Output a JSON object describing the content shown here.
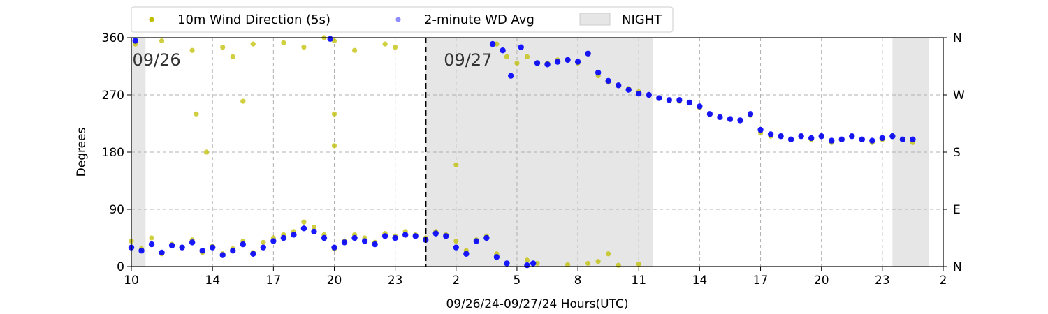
{
  "chart_data": {
    "type": "scatter",
    "x_hour_ticks": [
      "10",
      "14",
      "17",
      "20",
      "23",
      "2",
      "5",
      "8",
      "11",
      "14",
      "17",
      "20",
      "23",
      "2"
    ],
    "xlabel": "09/26/24-09/27/24  Hours(UTC)",
    "ylabel": "Degrees",
    "ylim": [
      0,
      360
    ],
    "y_ticks": [
      "0",
      "90",
      "180",
      "270",
      "360"
    ],
    "y2_ticks": [
      "N",
      "E",
      "S",
      "W",
      "N"
    ],
    "grid": true,
    "legend_position": "top",
    "date_markers": [
      {
        "label": "09/26"
      },
      {
        "label": "09/27"
      }
    ],
    "night_bands_hours": [
      [
        10,
        10.7
      ],
      [
        24.5,
        35.7
      ],
      [
        47.5,
        49.3
      ]
    ],
    "midnight_marker_hour": 24.5,
    "series": [
      {
        "name": "10m Wind Direction (5s)",
        "color": "#bfbf00",
        "marker": "scatter-dot",
        "points": [
          [
            10,
            40
          ],
          [
            10.5,
            28
          ],
          [
            11,
            45
          ],
          [
            11.5,
            20
          ],
          [
            12,
            35
          ],
          [
            12.5,
            30
          ],
          [
            13,
            42
          ],
          [
            13.5,
            22
          ],
          [
            14,
            32
          ],
          [
            14.5,
            20
          ],
          [
            15,
            28
          ],
          [
            15.5,
            40
          ],
          [
            16,
            22
          ],
          [
            16.5,
            38
          ],
          [
            17,
            45
          ],
          [
            17.5,
            50
          ],
          [
            18,
            55
          ],
          [
            18.5,
            70
          ],
          [
            19,
            62
          ],
          [
            19.5,
            50
          ],
          [
            20,
            28
          ],
          [
            20.5,
            40
          ],
          [
            21,
            50
          ],
          [
            21.5,
            45
          ],
          [
            22,
            38
          ],
          [
            22.5,
            52
          ],
          [
            23,
            48
          ],
          [
            23.5,
            55
          ],
          [
            24,
            50
          ],
          [
            24.5,
            45
          ],
          [
            25,
            55
          ],
          [
            25.5,
            50
          ],
          [
            26,
            40
          ],
          [
            26.5,
            25
          ],
          [
            27,
            42
          ],
          [
            27.5,
            48
          ],
          [
            28,
            20
          ],
          [
            10.2,
            350
          ],
          [
            11.5,
            355
          ],
          [
            13,
            340
          ],
          [
            14.5,
            345
          ],
          [
            15,
            330
          ],
          [
            16,
            350
          ],
          [
            17.5,
            352
          ],
          [
            18.5,
            345
          ],
          [
            19.5,
            360
          ],
          [
            20,
            355
          ],
          [
            21,
            340
          ],
          [
            22.5,
            350
          ],
          [
            23,
            345
          ],
          [
            13.7,
            180
          ],
          [
            13.2,
            240
          ],
          [
            15.5,
            260
          ],
          [
            20,
            190
          ],
          [
            20,
            240
          ],
          [
            26,
            160
          ],
          [
            28,
            350
          ],
          [
            28.5,
            330
          ],
          [
            29,
            320
          ],
          [
            29.5,
            330
          ],
          [
            30,
            320
          ],
          [
            30.5,
            320
          ],
          [
            31,
            325
          ],
          [
            31.5,
            325
          ],
          [
            32,
            320
          ],
          [
            32.5,
            335
          ],
          [
            33,
            300
          ],
          [
            33.5,
            290
          ],
          [
            34,
            285
          ],
          [
            34.5,
            280
          ],
          [
            35,
            275
          ],
          [
            35.5,
            270
          ],
          [
            36,
            265
          ],
          [
            36.5,
            262
          ],
          [
            37,
            260
          ],
          [
            37.5,
            258
          ],
          [
            38,
            250
          ],
          [
            38.5,
            240
          ],
          [
            39,
            235
          ],
          [
            39.5,
            232
          ],
          [
            40,
            230
          ],
          [
            40.5,
            238
          ],
          [
            41,
            210
          ],
          [
            41.5,
            205
          ],
          [
            42,
            205
          ],
          [
            42.5,
            200
          ],
          [
            43,
            205
          ],
          [
            43.5,
            200
          ],
          [
            44,
            205
          ],
          [
            44.5,
            195
          ],
          [
            45,
            200
          ],
          [
            45.5,
            205
          ],
          [
            46,
            200
          ],
          [
            46.5,
            195
          ],
          [
            47,
            200
          ],
          [
            47.5,
            205
          ],
          [
            48,
            200
          ],
          [
            48.5,
            195
          ],
          [
            29.5,
            10
          ],
          [
            30,
            5
          ],
          [
            31.5,
            3
          ],
          [
            32.5,
            5
          ],
          [
            33,
            8
          ],
          [
            33.5,
            20
          ],
          [
            34,
            2
          ],
          [
            35,
            4
          ]
        ]
      },
      {
        "name": "2-minute WD Avg",
        "color": "#0000ff",
        "marker": "scatter-dot",
        "points": [
          [
            10,
            30
          ],
          [
            10.5,
            25
          ],
          [
            11,
            35
          ],
          [
            11.5,
            22
          ],
          [
            12,
            33
          ],
          [
            12.5,
            30
          ],
          [
            13,
            38
          ],
          [
            13.5,
            25
          ],
          [
            14,
            30
          ],
          [
            14.5,
            18
          ],
          [
            15,
            25
          ],
          [
            15.5,
            35
          ],
          [
            16,
            20
          ],
          [
            16.5,
            30
          ],
          [
            17,
            40
          ],
          [
            17.5,
            45
          ],
          [
            18,
            50
          ],
          [
            18.5,
            60
          ],
          [
            19,
            55
          ],
          [
            19.5,
            45
          ],
          [
            20,
            30
          ],
          [
            20.5,
            38
          ],
          [
            21,
            45
          ],
          [
            21.5,
            40
          ],
          [
            22,
            35
          ],
          [
            22.5,
            48
          ],
          [
            23,
            45
          ],
          [
            23.5,
            50
          ],
          [
            24,
            48
          ],
          [
            24.5,
            42
          ],
          [
            25,
            52
          ],
          [
            25.5,
            48
          ],
          [
            26,
            30
          ],
          [
            26.5,
            20
          ],
          [
            27,
            40
          ],
          [
            27.5,
            45
          ],
          [
            28,
            15
          ],
          [
            28.5,
            5
          ],
          [
            10.2,
            355
          ],
          [
            19.8,
            358
          ],
          [
            27.8,
            350
          ],
          [
            28.3,
            340
          ],
          [
            28.7,
            300
          ],
          [
            29.2,
            345
          ],
          [
            30,
            320
          ],
          [
            30.5,
            318
          ],
          [
            31,
            322
          ],
          [
            31.5,
            325
          ],
          [
            32,
            322
          ],
          [
            32.5,
            335
          ],
          [
            33,
            305
          ],
          [
            33.5,
            292
          ],
          [
            34,
            285
          ],
          [
            34.5,
            278
          ],
          [
            35,
            272
          ],
          [
            35.5,
            270
          ],
          [
            36,
            265
          ],
          [
            36.5,
            262
          ],
          [
            37,
            262
          ],
          [
            37.5,
            258
          ],
          [
            38,
            252
          ],
          [
            38.5,
            240
          ],
          [
            39,
            235
          ],
          [
            39.5,
            232
          ],
          [
            40,
            230
          ],
          [
            40.5,
            240
          ],
          [
            41,
            215
          ],
          [
            41.5,
            208
          ],
          [
            42,
            205
          ],
          [
            42.5,
            200
          ],
          [
            43,
            205
          ],
          [
            43.5,
            202
          ],
          [
            44,
            205
          ],
          [
            44.5,
            198
          ],
          [
            45,
            200
          ],
          [
            45.5,
            205
          ],
          [
            46,
            200
          ],
          [
            46.5,
            198
          ],
          [
            47,
            202
          ],
          [
            47.5,
            205
          ],
          [
            48,
            200
          ],
          [
            48.5,
            200
          ],
          [
            29.5,
            2
          ],
          [
            29.8,
            5
          ]
        ]
      }
    ],
    "night_legend_label": "NIGHT"
  }
}
